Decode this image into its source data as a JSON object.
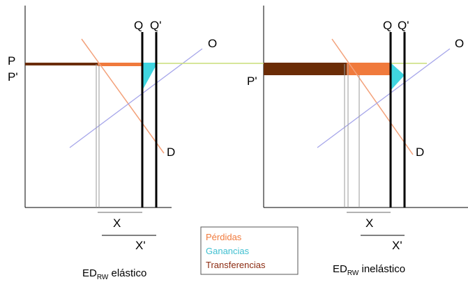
{
  "colors": {
    "losses": "#f07a3c",
    "gains": "#3fd5e0",
    "transfers": "#6b2c06",
    "price_line": "#c9de78",
    "demand": "#f3a17a",
    "supply": "#a6a6ea"
  },
  "left_panel": {
    "q_label": "Q",
    "q_prime_label": "Q'",
    "supply_label": "O",
    "demand_label": "D",
    "p_label": "P",
    "p_prime_label": "P'",
    "x_label": "X",
    "x_prime_label": "X'",
    "caption": {
      "main": "ED",
      "sub": "RW",
      "suffix": " elástico"
    }
  },
  "right_panel": {
    "q_label": "Q",
    "q_prime_label": "Q'",
    "supply_label": "O",
    "demand_label": "D",
    "p_prime_label": "P'",
    "x_label": "X",
    "x_prime_label": "X'",
    "caption": {
      "main": "ED",
      "sub": "RW",
      "suffix": " inelástico"
    }
  },
  "legend": {
    "losses": "Pérdidas",
    "gains": "Ganancias",
    "transfers": "Transferencias"
  }
}
